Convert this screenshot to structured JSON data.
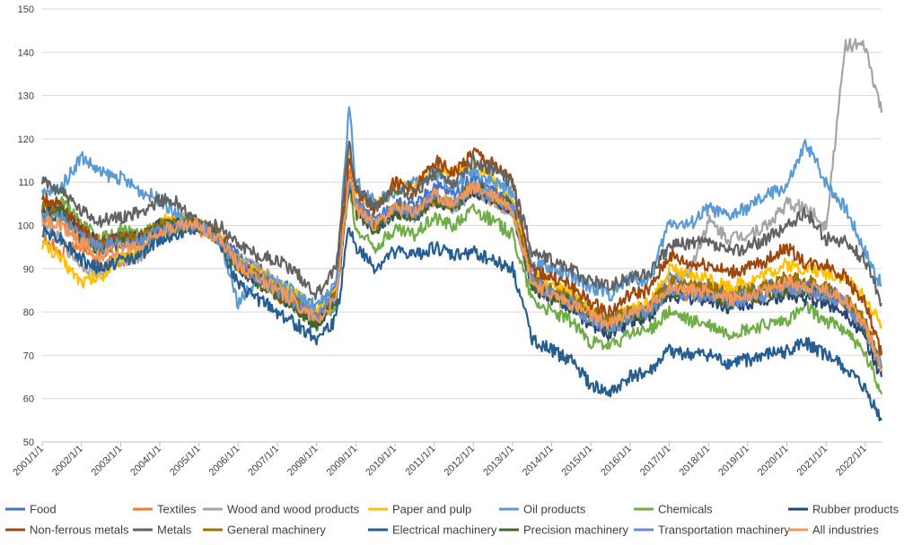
{
  "chart_data": {
    "type": "line",
    "title": "",
    "xlabel": "",
    "ylabel": "",
    "ylim": [
      50,
      150
    ],
    "yticks": [
      50,
      60,
      70,
      80,
      90,
      100,
      110,
      120,
      130,
      140,
      150
    ],
    "xlim": [
      "2001/1/1",
      "2022/6/1"
    ],
    "xticks": [
      "2001/1/1",
      "2002/1/1",
      "2003/1/1",
      "2004/1/1",
      "2005/1/1",
      "2006/1/1",
      "2007/1/1",
      "2008/1/1",
      "2009/1/1",
      "2010/1/1",
      "2011/1/1",
      "2012/1/1",
      "2013/1/1",
      "2014/1/1",
      "2015/1/1",
      "2016/1/1",
      "2017/1/1",
      "2018/1/1",
      "2019/1/1",
      "2020/1/1",
      "2021/1/1",
      "2022/1/1"
    ],
    "grid": true,
    "legend_position": "bottom",
    "x_points": [
      "2001/1/1",
      "2001/7/1",
      "2002/1/1",
      "2002/7/1",
      "2003/1/1",
      "2003/7/1",
      "2004/1/1",
      "2004/7/1",
      "2005/1/1",
      "2005/7/1",
      "2006/1/1",
      "2006/7/1",
      "2007/1/1",
      "2007/7/1",
      "2008/1/1",
      "2008/7/1",
      "2008/11/1",
      "2009/1/1",
      "2009/7/1",
      "2010/1/1",
      "2010/7/1",
      "2011/1/1",
      "2011/7/1",
      "2012/1/1",
      "2012/7/1",
      "2013/1/1",
      "2013/7/1",
      "2014/1/1",
      "2014/7/1",
      "2015/1/1",
      "2015/7/1",
      "2016/1/1",
      "2016/7/1",
      "2017/1/1",
      "2017/7/1",
      "2018/1/1",
      "2018/7/1",
      "2019/1/1",
      "2019/7/1",
      "2020/1/1",
      "2020/7/1",
      "2021/1/1",
      "2021/7/1",
      "2022/1/1",
      "2022/6/1"
    ],
    "series": [
      {
        "name": "Food",
        "color": "#4472c4",
        "values": [
          104,
          103,
          98,
          95,
          96,
          97,
          100,
          101,
          100,
          98,
          93,
          90,
          87,
          84,
          80,
          86,
          110,
          106,
          101,
          105,
          104,
          109,
          107,
          111,
          108,
          105,
          88,
          86,
          84,
          80,
          78,
          80,
          81,
          88,
          86,
          86,
          84,
          85,
          86,
          87,
          86,
          86,
          82,
          77,
          66
        ]
      },
      {
        "name": "Textiles",
        "color": "#ed7d31",
        "values": [
          97,
          94,
          95,
          91,
          92,
          93,
          99,
          100,
          99,
          97,
          91,
          89,
          86,
          83,
          79,
          84,
          113,
          106,
          100,
          104,
          103,
          106,
          105,
          108,
          106,
          103,
          87,
          84,
          83,
          79,
          77,
          79,
          80,
          85,
          84,
          84,
          82,
          83,
          84,
          85,
          84,
          84,
          81,
          76,
          67
        ]
      },
      {
        "name": "Wood and wood products",
        "color": "#a5a5a5",
        "values": [
          101,
          96,
          91,
          89,
          92,
          93,
          98,
          99,
          100,
          97,
          92,
          90,
          87,
          84,
          79,
          84,
          112,
          105,
          99,
          103,
          102,
          106,
          104,
          108,
          106,
          103,
          86,
          83,
          82,
          79,
          78,
          80,
          81,
          88,
          89,
          101,
          97,
          98,
          100,
          105,
          104,
          100,
          142,
          141,
          126
        ]
      },
      {
        "name": "Paper and pulp",
        "color": "#ffc000",
        "values": [
          96,
          92,
          87,
          88,
          93,
          94,
          101,
          102,
          100,
          98,
          91,
          89,
          86,
          84,
          80,
          85,
          119,
          108,
          104,
          109,
          109,
          113,
          112,
          114,
          111,
          107,
          90,
          86,
          84,
          80,
          78,
          81,
          82,
          90,
          88,
          88,
          86,
          87,
          89,
          91,
          90,
          89,
          88,
          83,
          77
        ]
      },
      {
        "name": "Oil products",
        "color": "#5b9bd5",
        "values": [
          107,
          109,
          116,
          112,
          111,
          108,
          106,
          102,
          100,
          97,
          82,
          88,
          87,
          84,
          81,
          86,
          128,
          110,
          105,
          108,
          110,
          112,
          109,
          113,
          110,
          108,
          91,
          90,
          88,
          86,
          84,
          88,
          87,
          101,
          100,
          104,
          102,
          104,
          107,
          109,
          119,
          110,
          104,
          94,
          86
        ]
      },
      {
        "name": "Chemicals",
        "color": "#70ad47",
        "values": [
          103,
          106,
          100,
          97,
          99,
          98,
          100,
          100,
          100,
          97,
          91,
          88,
          84,
          81,
          77,
          82,
          109,
          99,
          95,
          99,
          98,
          102,
          100,
          104,
          101,
          98,
          83,
          80,
          78,
          73,
          72,
          75,
          76,
          80,
          78,
          77,
          75,
          76,
          77,
          78,
          81,
          78,
          76,
          70,
          61
        ]
      },
      {
        "name": "Rubber products",
        "color": "#264478",
        "values": [
          104,
          104,
          98,
          96,
          97,
          97,
          100,
          100,
          100,
          97,
          90,
          87,
          84,
          81,
          77,
          83,
          110,
          104,
          99,
          103,
          102,
          106,
          104,
          108,
          106,
          104,
          86,
          83,
          81,
          77,
          75,
          78,
          79,
          84,
          83,
          83,
          81,
          82,
          83,
          84,
          83,
          82,
          80,
          74,
          65
        ]
      },
      {
        "name": "Non-ferrous metals",
        "color": "#9e480e",
        "values": [
          106,
          105,
          99,
          96,
          97,
          97,
          100,
          100,
          100,
          98,
          91,
          88,
          84,
          81,
          78,
          84,
          116,
          108,
          104,
          110,
          108,
          115,
          112,
          117,
          114,
          110,
          90,
          88,
          86,
          82,
          80,
          84,
          85,
          93,
          91,
          91,
          89,
          90,
          92,
          95,
          91,
          91,
          88,
          82,
          70
        ]
      },
      {
        "name": "Metals",
        "color": "#636363",
        "values": [
          110,
          108,
          103,
          101,
          102,
          103,
          106,
          105,
          100,
          100,
          96,
          93,
          92,
          89,
          84,
          90,
          120,
          109,
          104,
          108,
          107,
          112,
          110,
          115,
          113,
          110,
          94,
          92,
          90,
          87,
          86,
          88,
          89,
          95,
          96,
          96,
          94,
          95,
          97,
          100,
          103,
          97,
          96,
          92,
          82
        ]
      },
      {
        "name": "General machinery",
        "color": "#997300",
        "values": [
          104,
          103,
          97,
          95,
          97,
          97,
          100,
          100,
          100,
          97,
          91,
          88,
          85,
          82,
          78,
          84,
          111,
          105,
          100,
          104,
          103,
          107,
          105,
          109,
          107,
          104,
          87,
          85,
          83,
          80,
          78,
          80,
          81,
          87,
          86,
          86,
          84,
          85,
          86,
          88,
          87,
          86,
          83,
          78,
          68
        ]
      },
      {
        "name": "Electrical machinery",
        "color": "#255e91",
        "values": [
          99,
          97,
          92,
          90,
          92,
          93,
          97,
          98,
          100,
          97,
          86,
          83,
          80,
          77,
          74,
          78,
          100,
          95,
          90,
          94,
          93,
          95,
          93,
          94,
          92,
          90,
          74,
          71,
          69,
          63,
          61,
          65,
          66,
          71,
          70,
          70,
          68,
          69,
          70,
          71,
          73,
          70,
          67,
          62,
          55
        ]
      },
      {
        "name": "Precision machinery",
        "color": "#43682b",
        "values": [
          102,
          103,
          96,
          94,
          96,
          96,
          99,
          100,
          100,
          97,
          90,
          87,
          84,
          81,
          77,
          83,
          110,
          103,
          99,
          103,
          102,
          106,
          104,
          109,
          107,
          104,
          86,
          84,
          82,
          78,
          76,
          79,
          80,
          85,
          84,
          84,
          82,
          83,
          84,
          85,
          85,
          84,
          82,
          76,
          67
        ]
      },
      {
        "name": "Transportation machinery",
        "color": "#698ed0",
        "values": [
          102,
          102,
          97,
          95,
          96,
          96,
          99,
          100,
          100,
          97,
          91,
          88,
          85,
          82,
          79,
          84,
          111,
          105,
          100,
          104,
          103,
          107,
          105,
          109,
          107,
          104,
          87,
          84,
          82,
          78,
          76,
          79,
          80,
          85,
          84,
          84,
          82,
          83,
          84,
          86,
          85,
          84,
          82,
          76,
          67
        ]
      },
      {
        "name": "All industries",
        "color": "#f1975a",
        "values": [
          101,
          100,
          96,
          93,
          95,
          95,
          99,
          100,
          100,
          97,
          91,
          88,
          85,
          82,
          78,
          83,
          111,
          104,
          100,
          104,
          103,
          107,
          105,
          109,
          107,
          104,
          87,
          84,
          82,
          79,
          77,
          80,
          81,
          86,
          85,
          85,
          83,
          84,
          85,
          87,
          86,
          85,
          83,
          77,
          67
        ]
      }
    ]
  }
}
